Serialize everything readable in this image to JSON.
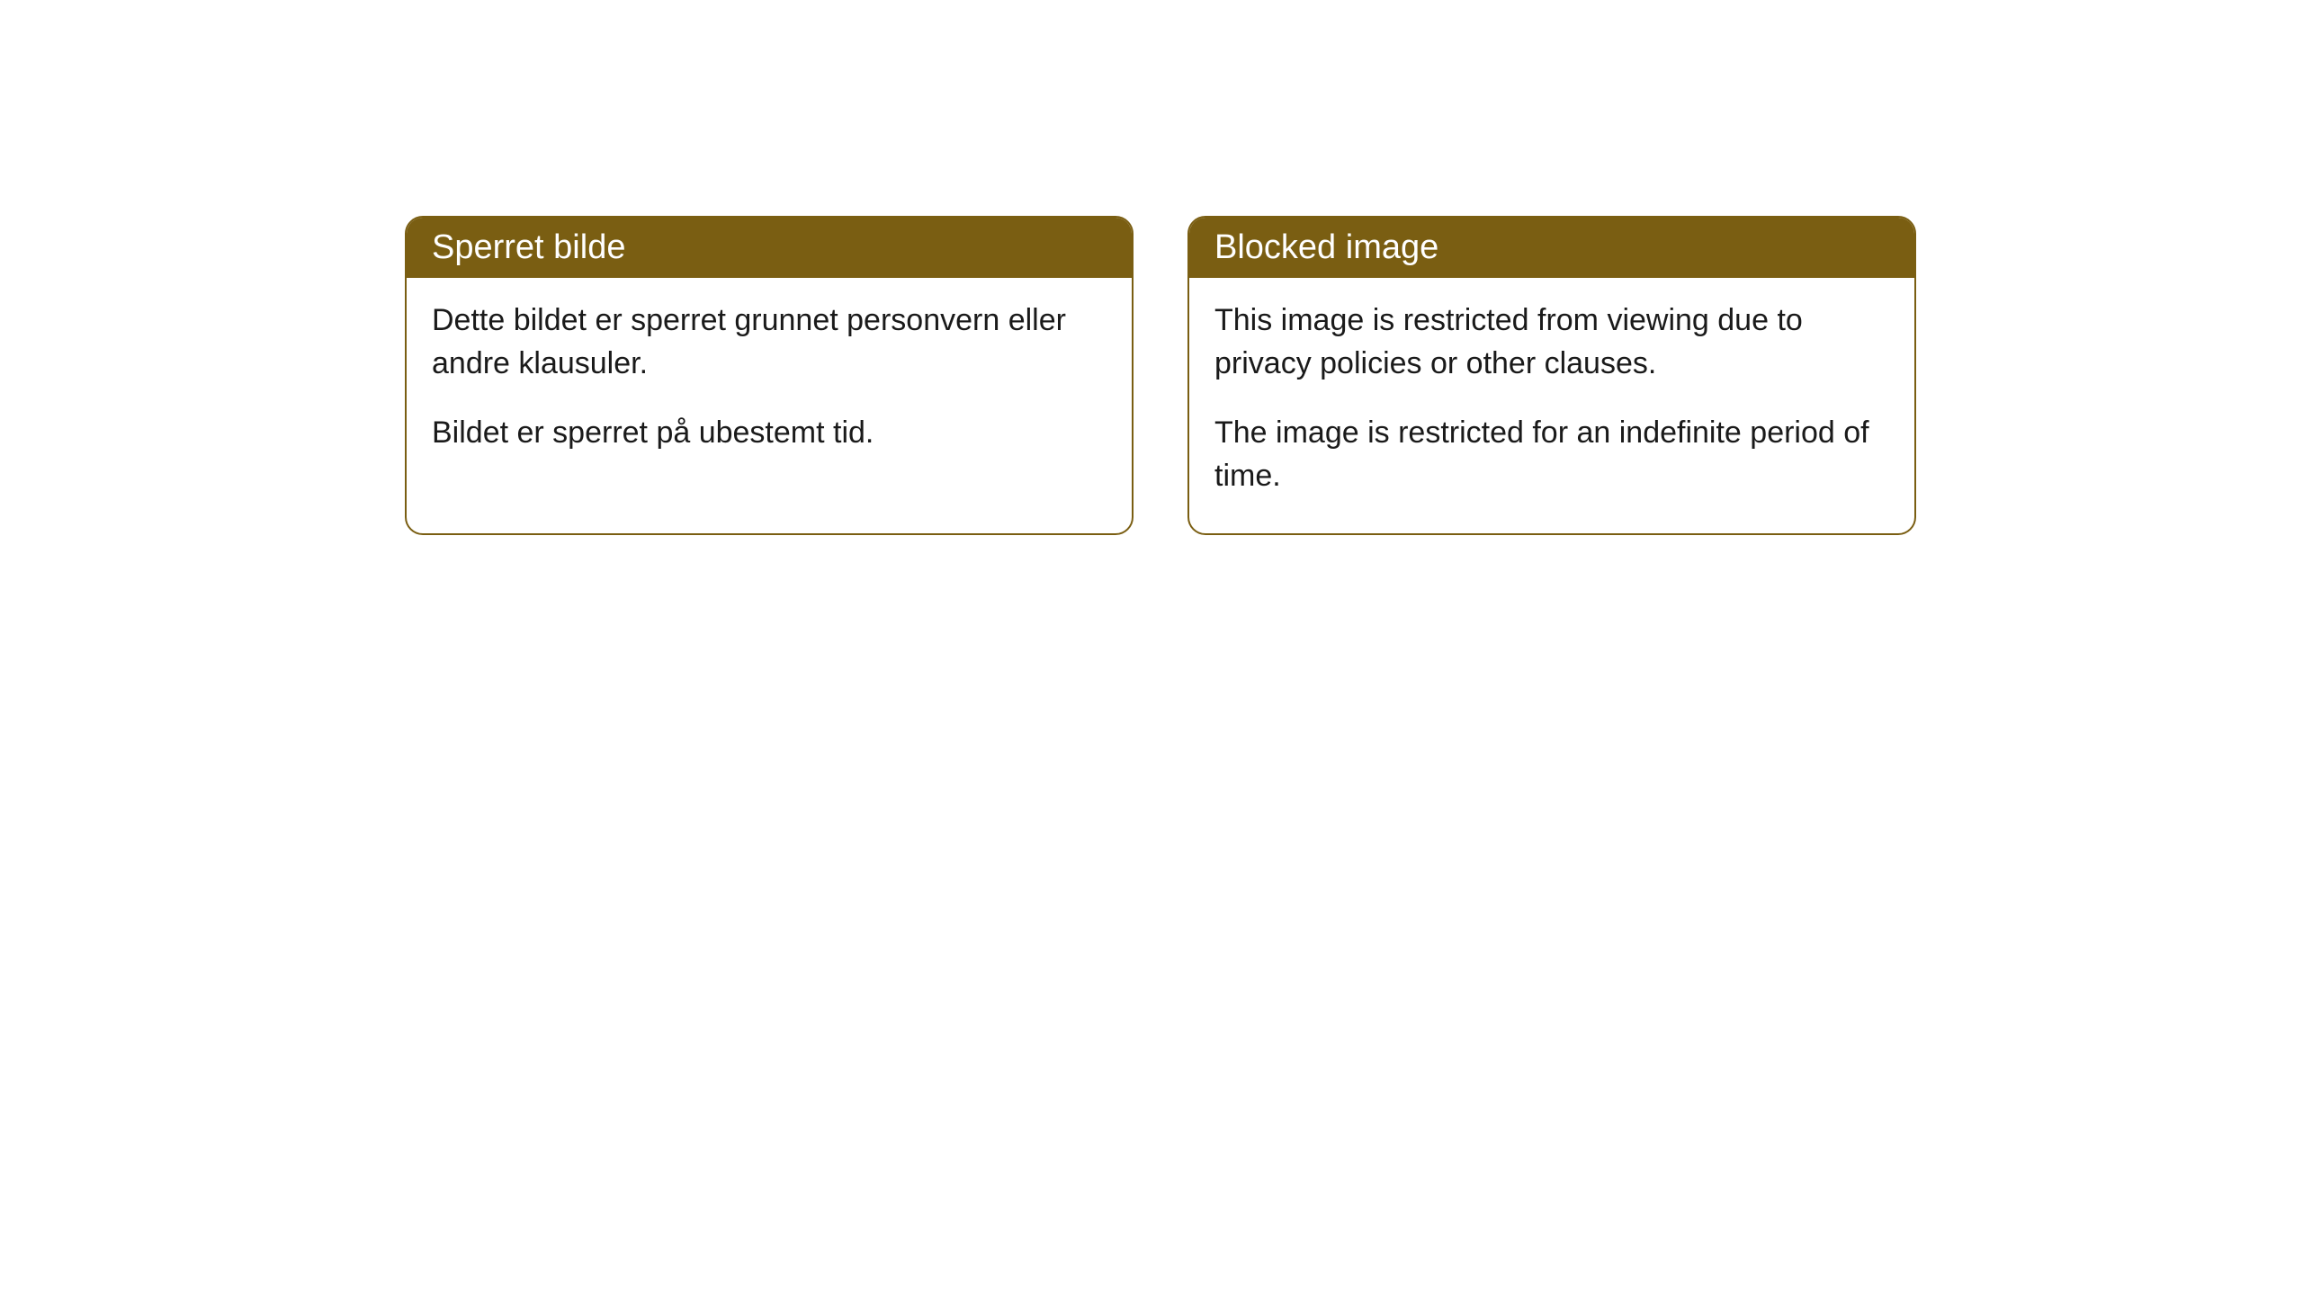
{
  "cards": [
    {
      "title": "Sperret bilde",
      "paragraph1": "Dette bildet er sperret grunnet personvern eller andre klausuler.",
      "paragraph2": "Bildet er sperret på ubestemt tid."
    },
    {
      "title": "Blocked image",
      "paragraph1": "This image is restricted from viewing due to privacy policies or other clauses.",
      "paragraph2": "The image is restricted for an indefinite period of time."
    }
  ],
  "styling": {
    "header_background_color": "#7a5e12",
    "header_text_color": "#ffffff",
    "card_border_color": "#7a5e12",
    "card_background_color": "#ffffff",
    "body_text_color": "#1a1a1a",
    "page_background_color": "#ffffff",
    "border_radius": 20,
    "header_fontsize": 38,
    "body_fontsize": 34
  }
}
